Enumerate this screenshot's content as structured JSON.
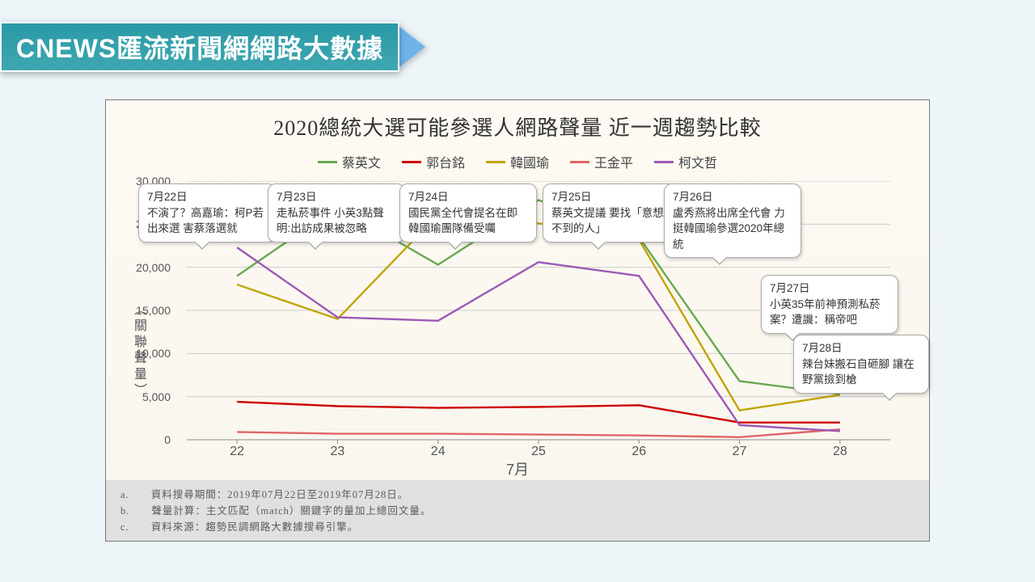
{
  "header": {
    "title": "CNEWS匯流新聞網網路大數據"
  },
  "chart": {
    "type": "line",
    "title": "2020總統大選可能參選人網路聲量  近一週趨勢比較",
    "y_axis": {
      "label_prefix": "（",
      "label": "關聯聲量",
      "label_suffix": "）",
      "min": 0,
      "max": 30000,
      "tick_step": 5000,
      "tick_labels": [
        "0",
        "5,000",
        "10,000",
        "15,000",
        "20,000",
        "25,000",
        "30,000"
      ]
    },
    "x_axis": {
      "label": "7月",
      "categories": [
        "22",
        "23",
        "24",
        "25",
        "26",
        "27",
        "28"
      ]
    },
    "grid_color": "#cccccc",
    "axis_color": "#888888",
    "background_gradient": [
      "#fefaf3",
      "#f9f6ee"
    ],
    "legend_fontsize": 16,
    "line_width": 2.4,
    "series": [
      {
        "name": "蔡英文",
        "color": "#6aa84f",
        "values": [
          19000,
          27000,
          20300,
          27800,
          23500,
          6800,
          5300
        ]
      },
      {
        "name": "郭台銘",
        "color": "#cc0000",
        "values": [
          4400,
          3900,
          3700,
          3800,
          4000,
          2000,
          2000
        ]
      },
      {
        "name": "韓國瑜",
        "color": "#bfa500",
        "values": [
          18000,
          14000,
          26100,
          25100,
          23200,
          3400,
          5200
        ]
      },
      {
        "name": "王金平",
        "color": "#e06666",
        "values": [
          900,
          700,
          700,
          600,
          500,
          300,
          1200
        ]
      },
      {
        "name": "柯文哲",
        "color": "#9b59b6",
        "values": [
          22300,
          14200,
          13800,
          20600,
          19000,
          1700,
          1000
        ]
      }
    ],
    "callouts": [
      {
        "date": "7月22日",
        "text": "不演了？高嘉瑜：柯P若出來選 害蔡落選就"
      },
      {
        "date": "7月23日",
        "text": "走私菸事件 小英3點聲明:出訪成果被忽略"
      },
      {
        "date": "7月24日",
        "text": "國民黨全代會提名在即 韓國瑜團隊備受囑"
      },
      {
        "date": "7月25日",
        "text": "蔡英文提議 要找「意想不到的人」"
      },
      {
        "date": "7月26日",
        "text": "盧秀燕將出席全代會 力挺韓國瑜參選2020年總統"
      },
      {
        "date": "7月27日",
        "text": "小英35年前神預測私菸案？遭譏：稱帝吧"
      },
      {
        "date": "7月28日",
        "text": "辣台妹搬石自砸腳 讓在野黨撿到槍"
      }
    ]
  },
  "footnotes": {
    "a": "資料搜尋期間：2019年07月22日至2019年07月28日。",
    "b": "聲量計算：主文匹配（match）關鍵字的量加上總回文量。",
    "c": "資料來源：趨勢民調網路大數據搜尋引擎。"
  }
}
